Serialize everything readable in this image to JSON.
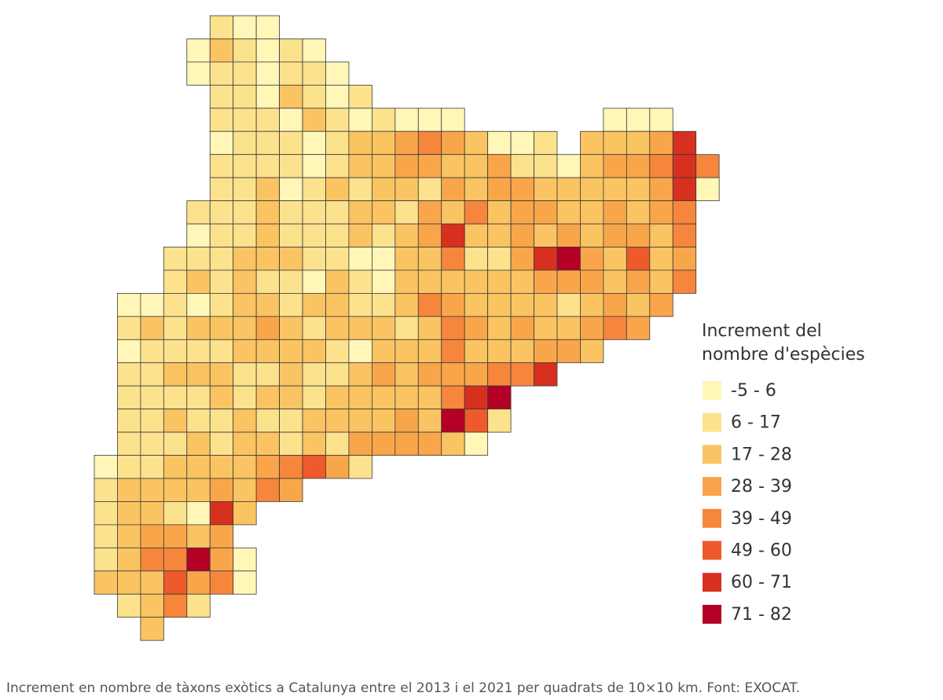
{
  "legend": {
    "title_lines": [
      "Increment del",
      "nombre d'espècies"
    ],
    "items": [
      {
        "label": "-5 - 6",
        "color": "#fff6b8"
      },
      {
        "label": "6 - 17",
        "color": "#fde28e"
      },
      {
        "label": "17 - 28",
        "color": "#fbc462"
      },
      {
        "label": "28 - 39",
        "color": "#f9a64b"
      },
      {
        "label": "39 - 49",
        "color": "#f6863c"
      },
      {
        "label": "49 - 60",
        "color": "#ee5a2b"
      },
      {
        "label": "60 - 71",
        "color": "#d8301f"
      },
      {
        "label": "71 - 82",
        "color": "#b30024"
      }
    ]
  },
  "grid": {
    "rows": [
      [
        null,
        null,
        null,
        null,
        null,
        1,
        0,
        0
      ],
      [
        null,
        null,
        null,
        null,
        0,
        2,
        1,
        0,
        1,
        0
      ],
      [
        null,
        null,
        null,
        null,
        0,
        1,
        1,
        0,
        1,
        1,
        0
      ],
      [
        null,
        null,
        null,
        null,
        null,
        1,
        1,
        0,
        2,
        1,
        0,
        1
      ],
      [
        null,
        null,
        null,
        null,
        null,
        1,
        1,
        1,
        0,
        2,
        1,
        0,
        1,
        0,
        0,
        0,
        null,
        null,
        null,
        null,
        null,
        null,
        0,
        0,
        0
      ],
      [
        null,
        null,
        null,
        null,
        null,
        0,
        1,
        1,
        1,
        0,
        1,
        2,
        2,
        3,
        4,
        3,
        2,
        0,
        0,
        1,
        null,
        2,
        2,
        2,
        3,
        6
      ],
      [
        null,
        null,
        null,
        null,
        null,
        1,
        1,
        1,
        1,
        0,
        1,
        2,
        2,
        3,
        3,
        2,
        2,
        3,
        1,
        1,
        0,
        2,
        3,
        3,
        4,
        6,
        4
      ],
      [
        null,
        null,
        null,
        null,
        null,
        1,
        1,
        2,
        0,
        1,
        2,
        1,
        2,
        2,
        1,
        3,
        2,
        3,
        3,
        2,
        2,
        2,
        2,
        2,
        3,
        6,
        0
      ],
      [
        null,
        null,
        null,
        null,
        1,
        1,
        1,
        2,
        1,
        1,
        1,
        2,
        2,
        1,
        3,
        2,
        4,
        2,
        3,
        3,
        2,
        2,
        3,
        2,
        3,
        4
      ],
      [
        null,
        null,
        null,
        null,
        0,
        1,
        1,
        2,
        1,
        1,
        1,
        2,
        1,
        2,
        3,
        6,
        2,
        2,
        3,
        2,
        3,
        2,
        3,
        3,
        2,
        4
      ],
      [
        null,
        null,
        null,
        1,
        1,
        1,
        2,
        2,
        2,
        1,
        1,
        0,
        0,
        2,
        2,
        4,
        1,
        1,
        3,
        6,
        7,
        3,
        2,
        5,
        2,
        3
      ],
      [
        null,
        null,
        null,
        1,
        2,
        1,
        2,
        1,
        1,
        0,
        2,
        1,
        0,
        2,
        2,
        2,
        2,
        2,
        2,
        3,
        3,
        3,
        2,
        3,
        2,
        4
      ],
      [
        null,
        0,
        0,
        1,
        0,
        1,
        2,
        2,
        1,
        2,
        2,
        1,
        1,
        2,
        4,
        3,
        2,
        2,
        2,
        2,
        1,
        2,
        3,
        2,
        3
      ],
      [
        null,
        1,
        2,
        1,
        2,
        2,
        2,
        3,
        2,
        1,
        2,
        2,
        2,
        1,
        2,
        4,
        3,
        2,
        3,
        2,
        2,
        3,
        4,
        3
      ],
      [
        null,
        0,
        1,
        1,
        1,
        1,
        2,
        2,
        2,
        2,
        1,
        0,
        2,
        2,
        2,
        4,
        2,
        2,
        2,
        3,
        3,
        2
      ],
      [
        null,
        1,
        1,
        2,
        2,
        2,
        1,
        1,
        2,
        1,
        1,
        2,
        3,
        2,
        3,
        3,
        3,
        4,
        4,
        6
      ],
      [
        null,
        1,
        1,
        1,
        1,
        2,
        1,
        2,
        2,
        1,
        2,
        2,
        2,
        2,
        2,
        4,
        6,
        7
      ],
      [
        null,
        1,
        1,
        2,
        1,
        1,
        2,
        1,
        1,
        2,
        2,
        2,
        2,
        3,
        2,
        7,
        5,
        1
      ],
      [
        null,
        1,
        1,
        1,
        2,
        1,
        2,
        2,
        1,
        2,
        1,
        3,
        3,
        3,
        3,
        2,
        0
      ],
      [
        0,
        1,
        1,
        2,
        2,
        2,
        2,
        3,
        4,
        5,
        3,
        1
      ],
      [
        1,
        2,
        2,
        2,
        2,
        3,
        2,
        4,
        3
      ],
      [
        1,
        2,
        2,
        1,
        0,
        6,
        2
      ],
      [
        1,
        2,
        3,
        3,
        2,
        3
      ],
      [
        1,
        2,
        4,
        4,
        7,
        3,
        0
      ],
      [
        2,
        2,
        2,
        5,
        3,
        4,
        0
      ],
      [
        null,
        1,
        2,
        4,
        1
      ],
      [
        null,
        null,
        2
      ]
    ]
  },
  "caption": "Increment en nombre de tàxons exòtics a Catalunya entre el 2013 i el 2021 per quadrats de 10×10 km. Font: EXOCAT."
}
